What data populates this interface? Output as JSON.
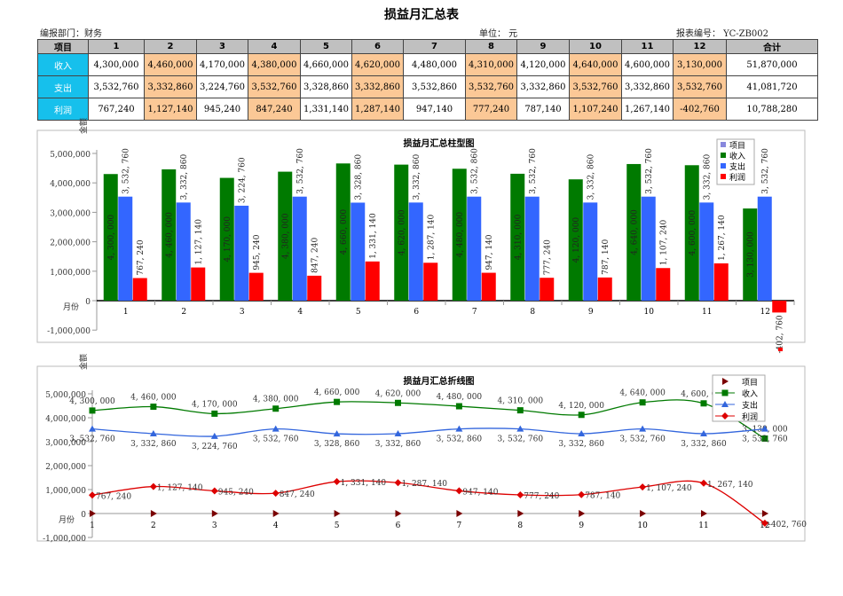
{
  "title": "损益月汇总表",
  "info": {
    "dept": "编报部门：财务",
    "unit": "单位：  元",
    "report_no": "报表编号：  YC-ZB002"
  },
  "table": {
    "headers": [
      "项目",
      "1",
      "2",
      "3",
      "4",
      "5",
      "6",
      "7",
      "8",
      "9",
      "10",
      "11",
      "12",
      "合计"
    ],
    "rows": [
      {
        "label": "收入",
        "values": [
          "4,300,000",
          "4,460,000",
          "4,170,000",
          "4,380,000",
          "4,660,000",
          "4,620,000",
          "4,480,000",
          "4,310,000",
          "4,120,000",
          "4,640,000",
          "4,600,000",
          "3,130,000",
          "51,870,000"
        ]
      },
      {
        "label": "支出",
        "values": [
          "3,532,760",
          "3,332,860",
          "3,224,760",
          "3,532,760",
          "3,328,860",
          "3,332,860",
          "3,532,860",
          "3,532,760",
          "3,332,860",
          "3,532,760",
          "3,332,860",
          "3,532,760",
          "41,081,720"
        ]
      },
      {
        "label": "利润",
        "values": [
          "767,240",
          "1,127,140",
          "945,240",
          "847,240",
          "1,331,140",
          "1,287,140",
          "947,140",
          "777,240",
          "787,140",
          "1,107,240",
          "1,267,140",
          "-402,760",
          "10,788,280"
        ]
      }
    ],
    "colors": {
      "header": "#c0c0c0",
      "row_label": "#16c0ec",
      "highlight": "#fbc896"
    }
  },
  "chart_data": [
    {
      "type": "bar",
      "title": "损益月汇总柱型图",
      "xlabel": "月份",
      "ylabel": "金额",
      "categories": [
        "1",
        "2",
        "3",
        "4",
        "5",
        "6",
        "7",
        "8",
        "9",
        "10",
        "11",
        "12"
      ],
      "ylim": [
        -1000000,
        5000000
      ],
      "yticks": [
        "5,000,000",
        "4,000,000",
        "3,000,000",
        "2,000,000",
        "1,000,000",
        "0",
        "-1,000,000"
      ],
      "legend": [
        "项目",
        "收入",
        "支出",
        "利润"
      ],
      "legend_position": "top-right",
      "series": [
        {
          "name": "收入",
          "color": "#007a00",
          "values": [
            4300000,
            4460000,
            4170000,
            4380000,
            4660000,
            4620000,
            4480000,
            4310000,
            4120000,
            4640000,
            4600000,
            3130000
          ]
        },
        {
          "name": "支出",
          "color": "#3366ff",
          "values": [
            3532760,
            3332860,
            3224760,
            3532760,
            3328860,
            3332860,
            3532860,
            3532760,
            3332860,
            3532760,
            3332860,
            3532760
          ]
        },
        {
          "name": "利润",
          "color": "#ff0000",
          "values": [
            767240,
            1127140,
            945240,
            847240,
            1331140,
            1287140,
            947140,
            777240,
            787140,
            1107240,
            1267140,
            -402760
          ]
        }
      ],
      "legend_colors": [
        "#8888dd",
        "#007a00",
        "#3366ff",
        "#ff0000"
      ]
    },
    {
      "type": "line",
      "title": "损益月汇总折线图",
      "xlabel": "月份",
      "ylabel": "金额",
      "categories": [
        "1",
        "2",
        "3",
        "4",
        "5",
        "6",
        "7",
        "8",
        "9",
        "10",
        "11",
        "12"
      ],
      "ylim": [
        -1000000,
        5000000
      ],
      "yticks": [
        "5,000,000",
        "4,000,000",
        "3,000,000",
        "2,000,000",
        "1,000,000",
        "0",
        "-1,000,000"
      ],
      "legend": [
        "项目",
        "收入",
        "支出",
        "利润"
      ],
      "legend_position": "top-right",
      "series": [
        {
          "name": "项目",
          "color": "#7a0000",
          "marker": "triangle-right",
          "values": [
            0,
            0,
            0,
            0,
            0,
            0,
            0,
            0,
            0,
            0,
            0,
            0
          ]
        },
        {
          "name": "收入",
          "color": "#007a00",
          "marker": "square",
          "values": [
            4300000,
            4460000,
            4170000,
            4380000,
            4660000,
            4620000,
            4480000,
            4310000,
            4120000,
            4640000,
            4600000,
            3130000
          ]
        },
        {
          "name": "支出",
          "color": "#3366dd",
          "marker": "triangle",
          "values": [
            3532760,
            3332860,
            3224760,
            3532760,
            3328860,
            3332860,
            3532860,
            3532760,
            3332860,
            3532760,
            3332860,
            3532760
          ]
        },
        {
          "name": "利润",
          "color": "#dd0000",
          "marker": "diamond",
          "values": [
            767240,
            1127140,
            945240,
            847240,
            1331140,
            1287140,
            947140,
            777240,
            787140,
            1107240,
            1267140,
            -402760
          ]
        }
      ]
    }
  ]
}
